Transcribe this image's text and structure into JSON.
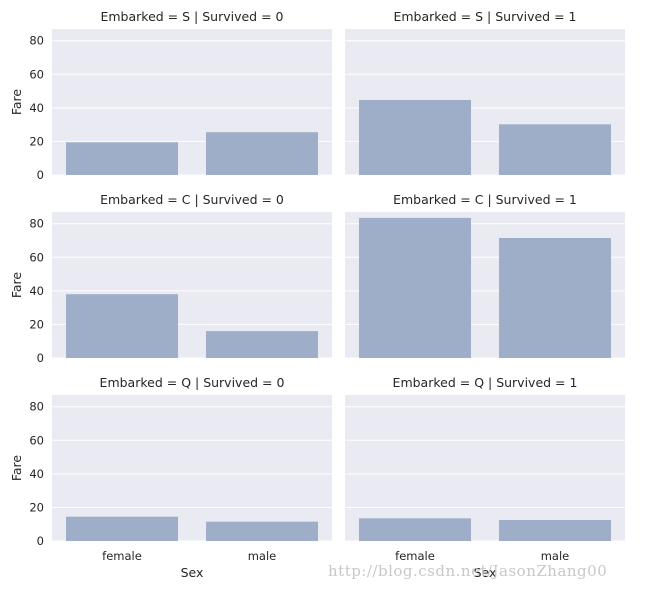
{
  "chart_data": {
    "type": "bar",
    "categories": [
      "female",
      "male"
    ],
    "xlabel": "Sex",
    "ylabel": "Fare",
    "ylim": [
      0,
      87
    ],
    "yticks": [
      0,
      20,
      40,
      60,
      80
    ],
    "bar_color": "#9eadc8",
    "panel_bg": "#eaeaf2",
    "grid": true,
    "facets": [
      {
        "title": "Embarked = S | Survived = 0",
        "values": [
          19.5,
          25.5
        ]
      },
      {
        "title": "Embarked = S | Survived = 1",
        "values": [
          44.7,
          30.2
        ]
      },
      {
        "title": "Embarked = C | Survived = 0",
        "values": [
          38.0,
          16.0
        ]
      },
      {
        "title": "Embarked = C | Survived = 1",
        "values": [
          83.5,
          71.5
        ]
      },
      {
        "title": "Embarked = Q | Survived = 0",
        "values": [
          14.5,
          11.5
        ]
      },
      {
        "title": "Embarked = Q | Survived = 1",
        "values": [
          13.5,
          12.5
        ]
      }
    ]
  },
  "watermark": "http://blog.csdn.net/JasonZhang00"
}
